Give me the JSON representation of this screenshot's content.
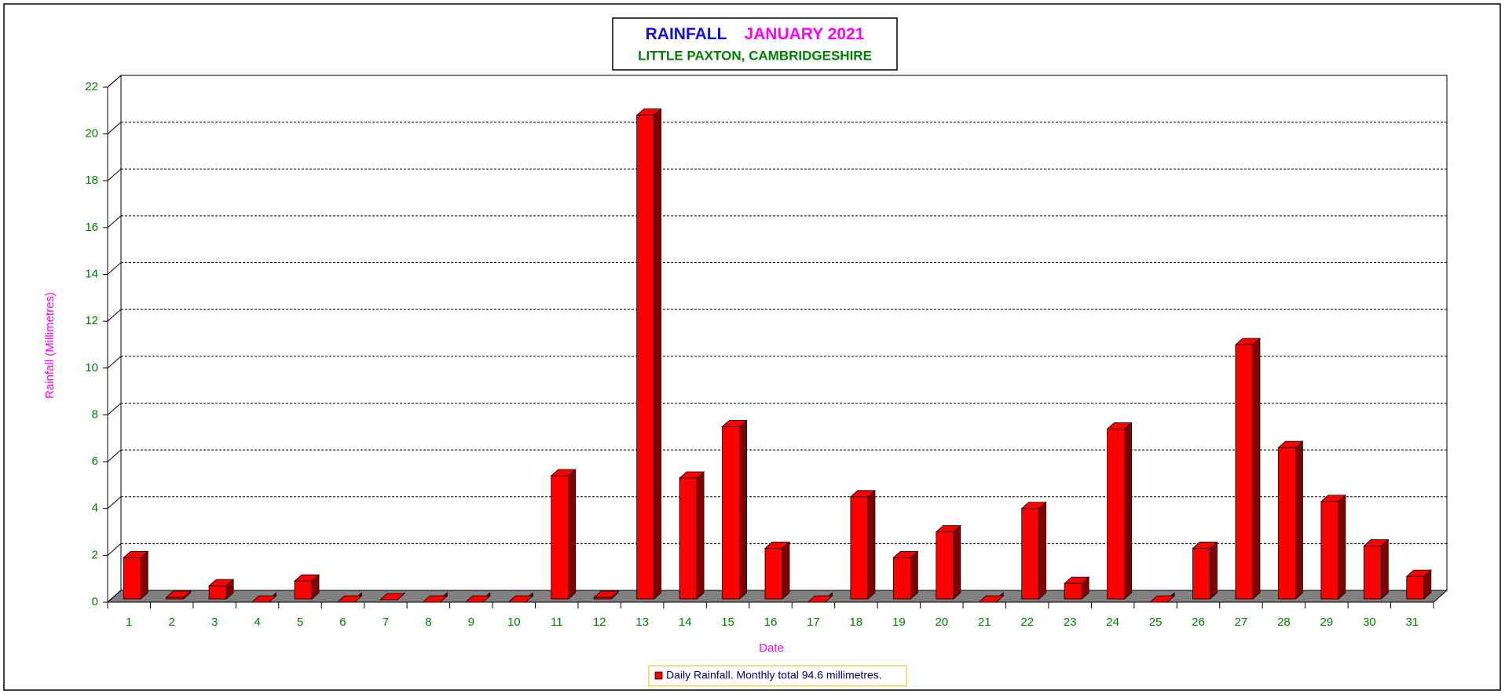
{
  "chart_data": {
    "type": "bar",
    "title_parts": [
      "RAINFALL",
      "JANUARY 2021"
    ],
    "subtitle": "LITTLE PAXTON, CAMBRIDGESHIRE",
    "y_label": "Rainfall  (Millimetres)",
    "x_label": "Date",
    "categories": [
      "1",
      "2",
      "3",
      "4",
      "5",
      "6",
      "7",
      "8",
      "9",
      "10",
      "11",
      "12",
      "13",
      "14",
      "15",
      "16",
      "17",
      "18",
      "19",
      "20",
      "21",
      "22",
      "23",
      "24",
      "25",
      "26",
      "27",
      "28",
      "29",
      "30",
      "31"
    ],
    "series": [
      {
        "name": "Daily Rainfall. Monthly total 94.6 millimetres.",
        "color": "#ff0000",
        "values": [
          1.9,
          0.2,
          0.7,
          0,
          0.9,
          0,
          0.1,
          0,
          0,
          0,
          5.4,
          0.2,
          20.8,
          5.3,
          7.5,
          2.3,
          0,
          4.5,
          1.9,
          3.0,
          0,
          4.0,
          0.8,
          7.4,
          0,
          2.3,
          11.0,
          6.6,
          4.3,
          2.4,
          1.1
        ]
      }
    ],
    "ylim": [
      0,
      22
    ],
    "yticks": [
      0,
      2,
      4,
      6,
      8,
      10,
      12,
      14,
      16,
      18,
      20,
      22
    ],
    "grid": true
  }
}
